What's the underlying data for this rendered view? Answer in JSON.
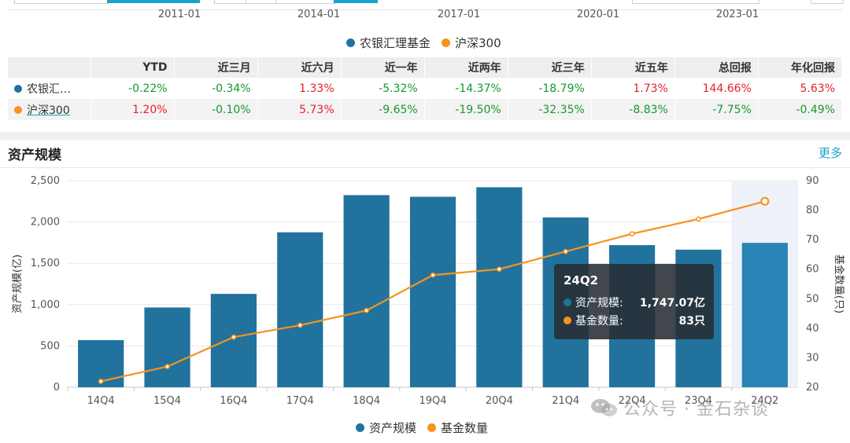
{
  "top_dates": [
    "2011-01",
    "2014-01",
    "2017-01",
    "2020-01",
    "2023-01"
  ],
  "top_legend": [
    {
      "label": "农银汇理基金",
      "color": "#21739e"
    },
    {
      "label": "沪深300",
      "color": "#f7931e"
    }
  ],
  "table": {
    "headers": [
      "",
      "YTD",
      "近三月",
      "近六月",
      "近一年",
      "近两年",
      "近三年",
      "近五年",
      "总回报",
      "年化回报"
    ],
    "rows": [
      {
        "name": "农银汇…",
        "color": "#21739e",
        "values": [
          "-0.22%",
          "-0.34%",
          "1.33%",
          "-5.32%",
          "-14.37%",
          "-18.79%",
          "1.73%",
          "144.66%",
          "5.63%"
        ]
      },
      {
        "name": "沪深300",
        "color": "#f7931e",
        "values": [
          "1.20%",
          "-0.10%",
          "5.73%",
          "-9.65%",
          "-19.50%",
          "-32.35%",
          "-8.83%",
          "-7.75%",
          "-0.49%"
        ]
      }
    ]
  },
  "section": {
    "title": "资产规模",
    "more": "更多"
  },
  "chart_data": {
    "type": "bar",
    "categories": [
      "14Q4",
      "15Q4",
      "16Q4",
      "17Q4",
      "18Q4",
      "19Q4",
      "20Q4",
      "21Q4",
      "22Q4",
      "23Q4",
      "24Q2"
    ],
    "series": [
      {
        "name": "资产规模",
        "type": "bar",
        "axis": "left",
        "color": "#21739e",
        "values": [
          570,
          965,
          1130,
          1875,
          2325,
          2305,
          2420,
          2055,
          1720,
          1665,
          1747.07
        ]
      },
      {
        "name": "基金数量",
        "type": "line",
        "axis": "right",
        "color": "#f7931e",
        "values": [
          22,
          27,
          37,
          41,
          46,
          58,
          60,
          66,
          72,
          77,
          83
        ]
      }
    ],
    "ylabel": "资产规模(亿)",
    "ylabel_right": "基金数量(只)",
    "ylim": [
      0,
      2500
    ],
    "ylim_right": [
      20,
      90
    ],
    "yticks": [
      "0",
      "500",
      "1,000",
      "1,500",
      "2,000",
      "2,500"
    ],
    "yticks_right": [
      "20",
      "30",
      "40",
      "50",
      "60",
      "70",
      "80",
      "90"
    ],
    "legend_position": "bottom-center",
    "grid": true,
    "highlight_category": "24Q2"
  },
  "tooltip": {
    "title": "24Q2",
    "rows": [
      {
        "label": "资产规模:",
        "value": "1,747.07亿",
        "color": "#21739e"
      },
      {
        "label": "基金数量:",
        "value": "83只",
        "color": "#f7931e"
      }
    ]
  },
  "watermark": "公众号 · 金石杂谈"
}
